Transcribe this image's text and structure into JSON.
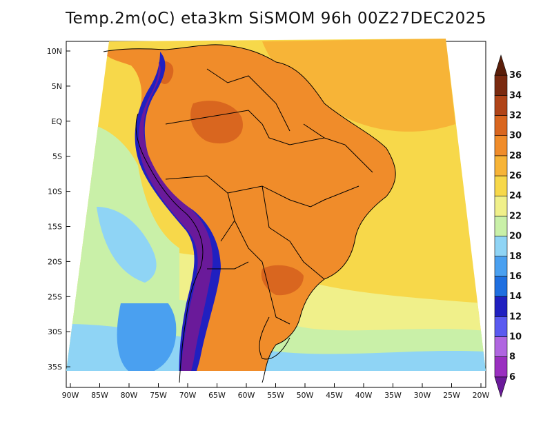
{
  "title": "Temp.2m(oC) eta3km SiSMOM 96h 00Z27DEC2025",
  "lat_labels": [
    "10N",
    "5N",
    "EQ",
    "5S",
    "10S",
    "15S",
    "20S",
    "25S",
    "30S",
    "35S"
  ],
  "lon_labels": [
    "90W",
    "85W",
    "80W",
    "75W",
    "70W",
    "65W",
    "60W",
    "55W",
    "50W",
    "45W",
    "40W",
    "35W",
    "30W",
    "25W",
    "20W"
  ],
  "colorbar": {
    "labels": [
      "6",
      "8",
      "10",
      "12",
      "14",
      "16",
      "18",
      "20",
      "22",
      "24",
      "26",
      "28",
      "30",
      "32",
      "34",
      "36"
    ],
    "colors": [
      "#6a1a9a",
      "#9a2fc0",
      "#b066e0",
      "#5a5af0",
      "#2020c0",
      "#1f6fe0",
      "#4aa0f0",
      "#8fd4f5",
      "#c9f0a8",
      "#f0f08a",
      "#f7d84a",
      "#f7b437",
      "#f08c2a",
      "#d9661f",
      "#b04418",
      "#7a2a10",
      "#5a1e0a"
    ]
  },
  "map_colors": {
    "ocean_warm": "#f7b437",
    "ocean_mid": "#f7d84a",
    "ocean_cool": "#f0f08a",
    "ocean_green": "#c9f0a8",
    "ocean_lightblue": "#8fd4f5",
    "ocean_blue": "#4aa0f0",
    "land_hot": "#f08c2a",
    "land_hotter": "#d9661f",
    "andes_cold": "#6a1a9a",
    "andes_blue": "#2020c0"
  }
}
